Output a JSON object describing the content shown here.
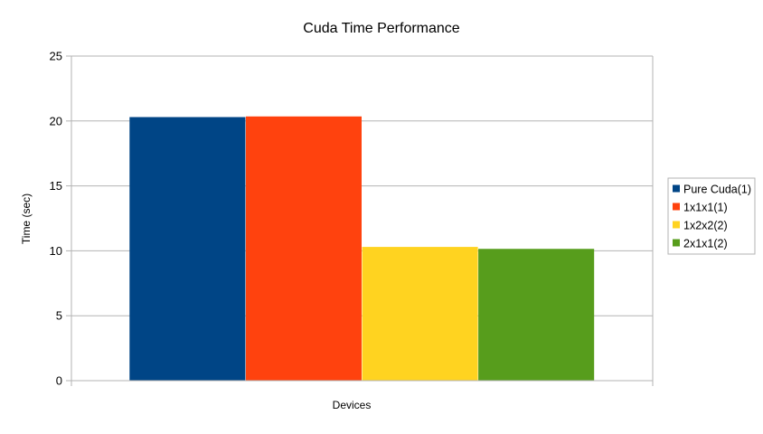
{
  "chart_data": {
    "type": "bar",
    "title": "Cuda Time Performance",
    "xlabel": "Devices",
    "ylabel": "Time (sec)",
    "categories": [
      ""
    ],
    "series": [
      {
        "name": "Pure Cuda(1)",
        "values": [
          20.3
        ],
        "color": "#004586"
      },
      {
        "name": "1x1x1(1)",
        "values": [
          20.35
        ],
        "color": "#ff420e"
      },
      {
        "name": "1x2x2(2)",
        "values": [
          10.3
        ],
        "color": "#ffd320"
      },
      {
        "name": "2x1x1(2)",
        "values": [
          10.15
        ],
        "color": "#579d1c"
      }
    ],
    "ylim": [
      0,
      25
    ],
    "yticks": [
      0,
      5,
      10,
      15,
      20,
      25
    ],
    "grid": true,
    "legend_position": "right"
  }
}
